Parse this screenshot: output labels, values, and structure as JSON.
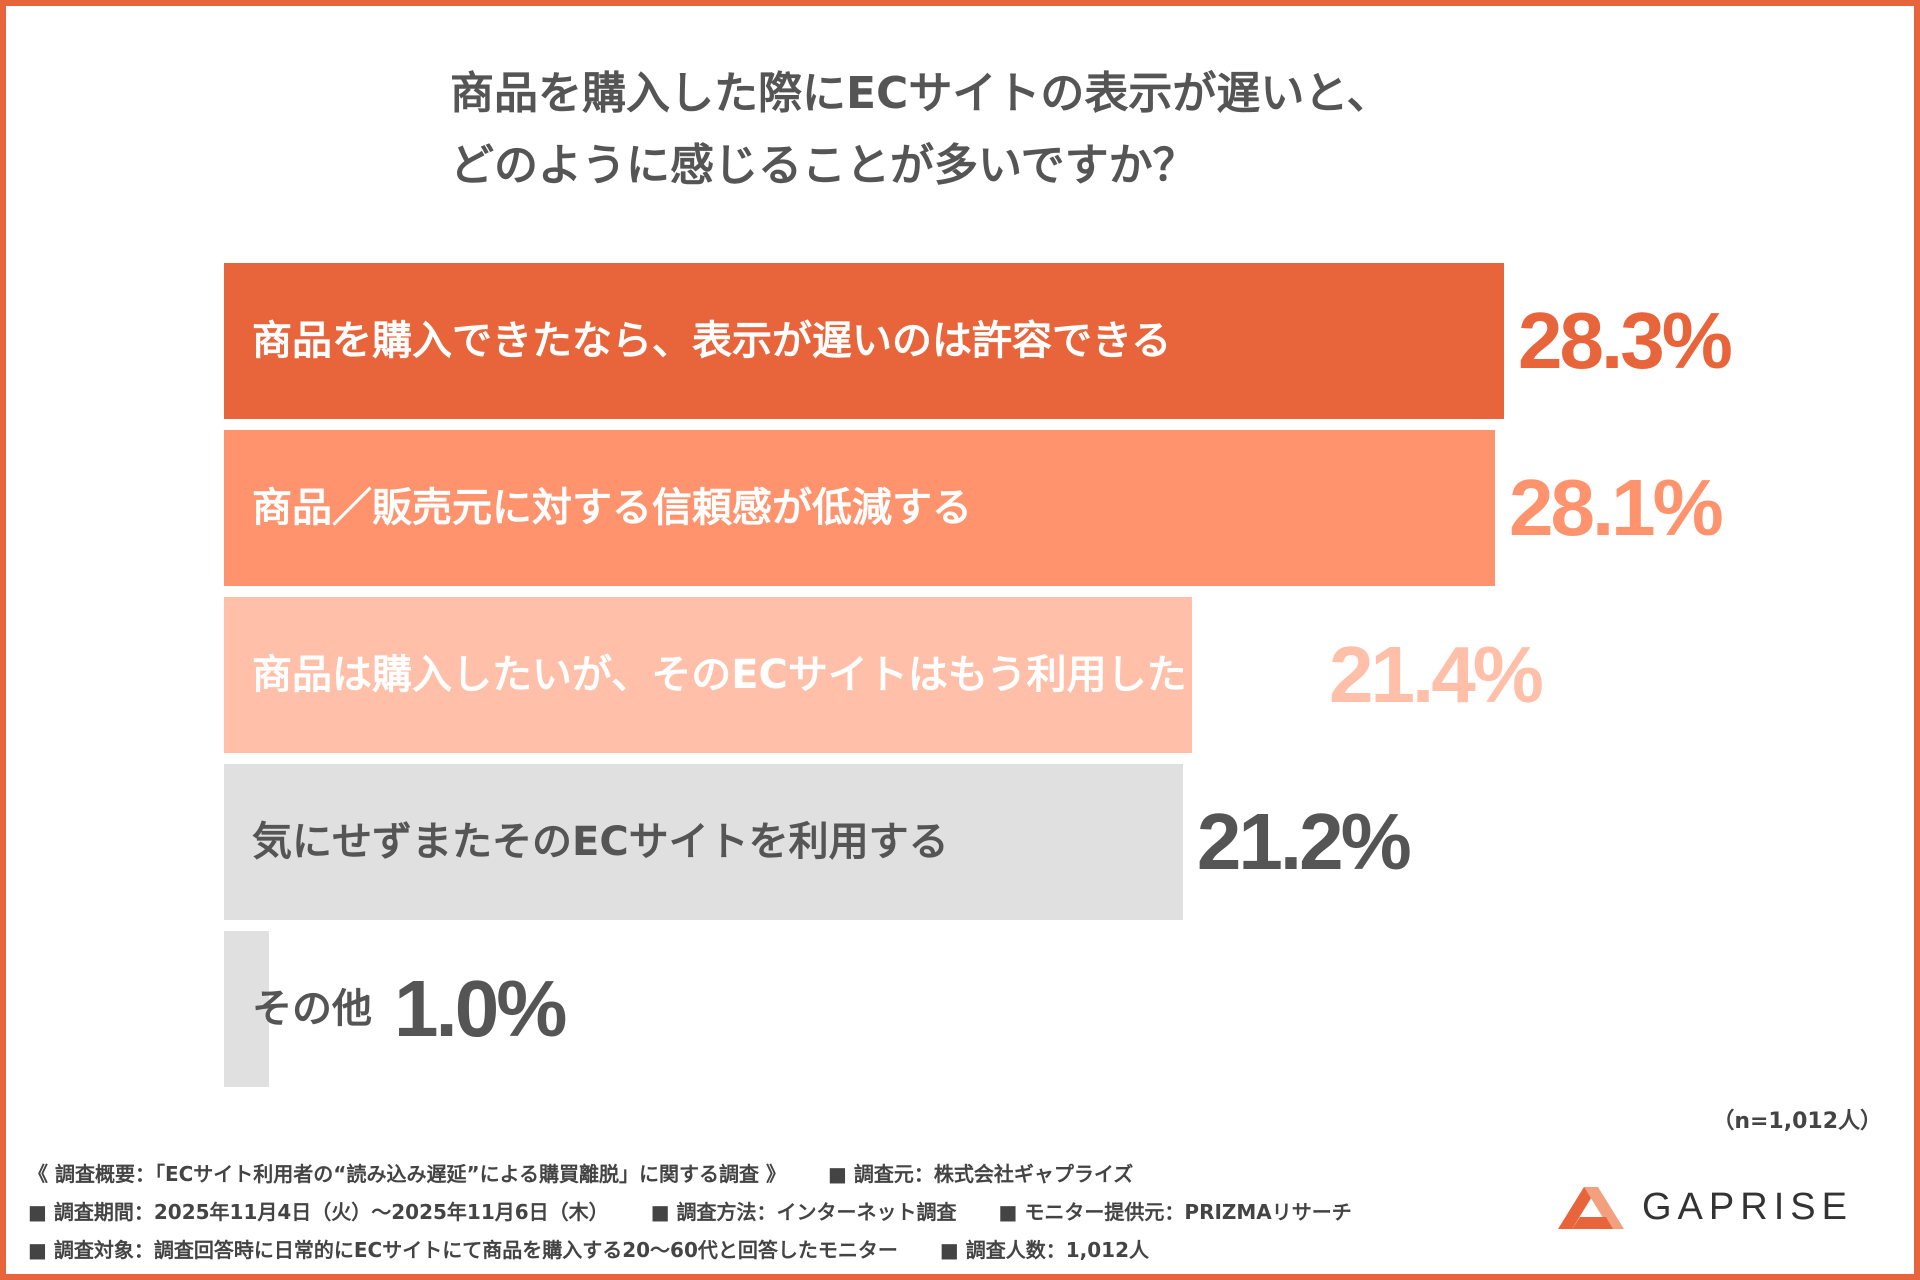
{
  "title_lines": [
    "商品を購入した際にECサイトの表示が遅いと、",
    "どのように感じることが多いですか？"
  ],
  "chart_data": {
    "type": "bar",
    "orientation": "horizontal",
    "categories": [
      "商品を購入できたなら、表示が遅いのは許容できる",
      "商品／販売元に対する信頼感が低減する",
      "商品は購入したいが、そのECサイトはもう利用したくない",
      "気にせずまたそのECサイトを利用する",
      "その他"
    ],
    "values": [
      28.3,
      28.1,
      21.4,
      21.2,
      1.0
    ],
    "value_labels": [
      "28.3%",
      "28.1%",
      "21.4%",
      "21.2%",
      "1.0%"
    ],
    "unit": "%",
    "bar_colors": [
      "#e8643a",
      "#ff936d",
      "#ffbfa8",
      "#e0e0e0",
      "#e0e0e0"
    ],
    "label_colors": [
      "#ffffff",
      "#ffffff",
      "#ffffff",
      "#555555",
      "#555555"
    ],
    "value_colors": [
      "#e8643a",
      "#ff936d",
      "#ffbfa8",
      "#555555",
      "#555555"
    ],
    "grid": false,
    "legend": "none"
  },
  "sample_size": "（n=1,012人）",
  "footer": {
    "line1": [
      "《 調査概要：「ECサイト利用者の“読み込み遅延”による購買離脱」に関する調査 》",
      "■ 調査元：株式会社ギャプライズ"
    ],
    "line2": [
      "■ 調査期間：2025年11月4日（火）〜2025年11月6日（木）",
      "■ 調査方法：インターネット調査",
      "■ モニター提供元：PRIZMAリサーチ"
    ],
    "line3": [
      "■ 調査対象：調査回答時に日常的にECサイトにて商品を購入する20〜60代と回答したモニター",
      "■ 調査人数：1,012人"
    ]
  },
  "logo": {
    "text": "GAPRISE",
    "color": "#e8643a"
  }
}
